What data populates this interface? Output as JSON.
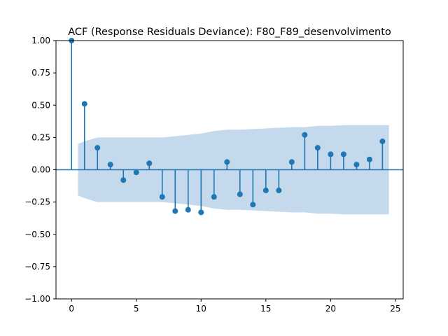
{
  "chart_data": {
    "type": "scatter",
    "title": "ACF (Response Residuals Deviance): F80_F89_desenvolvimento",
    "xlabel": "",
    "ylabel": "",
    "xlim": [
      -1.2,
      25.6
    ],
    "ylim": [
      -1.0,
      1.0
    ],
    "x_ticks": [
      0,
      5,
      10,
      15,
      20,
      25
    ],
    "y_ticks": [
      -1.0,
      -0.75,
      -0.5,
      -0.25,
      0.0,
      0.25,
      0.5,
      0.75,
      1.0
    ],
    "x_tick_labels": [
      "0",
      "5",
      "10",
      "15",
      "20",
      "25"
    ],
    "y_tick_labels": [
      "−1.00",
      "−0.75",
      "−0.50",
      "−0.25",
      "0.00",
      "0.25",
      "0.50",
      "0.75",
      "1.00"
    ],
    "grid": false,
    "colors": {
      "stem": "#1f77b4",
      "band": "#c5d9ec",
      "zero_line": "#1f77b4"
    },
    "lags": [
      0,
      1,
      2,
      3,
      4,
      5,
      6,
      7,
      8,
      9,
      10,
      11,
      12,
      13,
      14,
      15,
      16,
      17,
      18,
      19,
      20,
      21,
      22,
      23,
      24
    ],
    "acf": [
      1.0,
      0.51,
      0.17,
      0.04,
      -0.08,
      -0.02,
      0.05,
      -0.21,
      -0.32,
      -0.31,
      -0.33,
      -0.21,
      0.06,
      -0.19,
      -0.27,
      -0.16,
      -0.16,
      0.06,
      0.27,
      0.17,
      0.12,
      0.12,
      0.04,
      0.08,
      0.22
    ],
    "confidence_band": {
      "x": [
        0.5,
        1,
        2,
        3,
        4,
        5,
        6,
        7,
        8,
        9,
        10,
        11,
        12,
        13,
        14,
        15,
        16,
        17,
        18,
        19,
        20,
        21,
        22,
        23,
        24,
        24.5
      ],
      "upper": [
        0.2,
        0.22,
        0.25,
        0.25,
        0.25,
        0.25,
        0.25,
        0.25,
        0.26,
        0.27,
        0.28,
        0.3,
        0.31,
        0.31,
        0.315,
        0.32,
        0.325,
        0.33,
        0.33,
        0.34,
        0.34,
        0.345,
        0.345,
        0.345,
        0.345,
        0.345
      ]
    }
  }
}
